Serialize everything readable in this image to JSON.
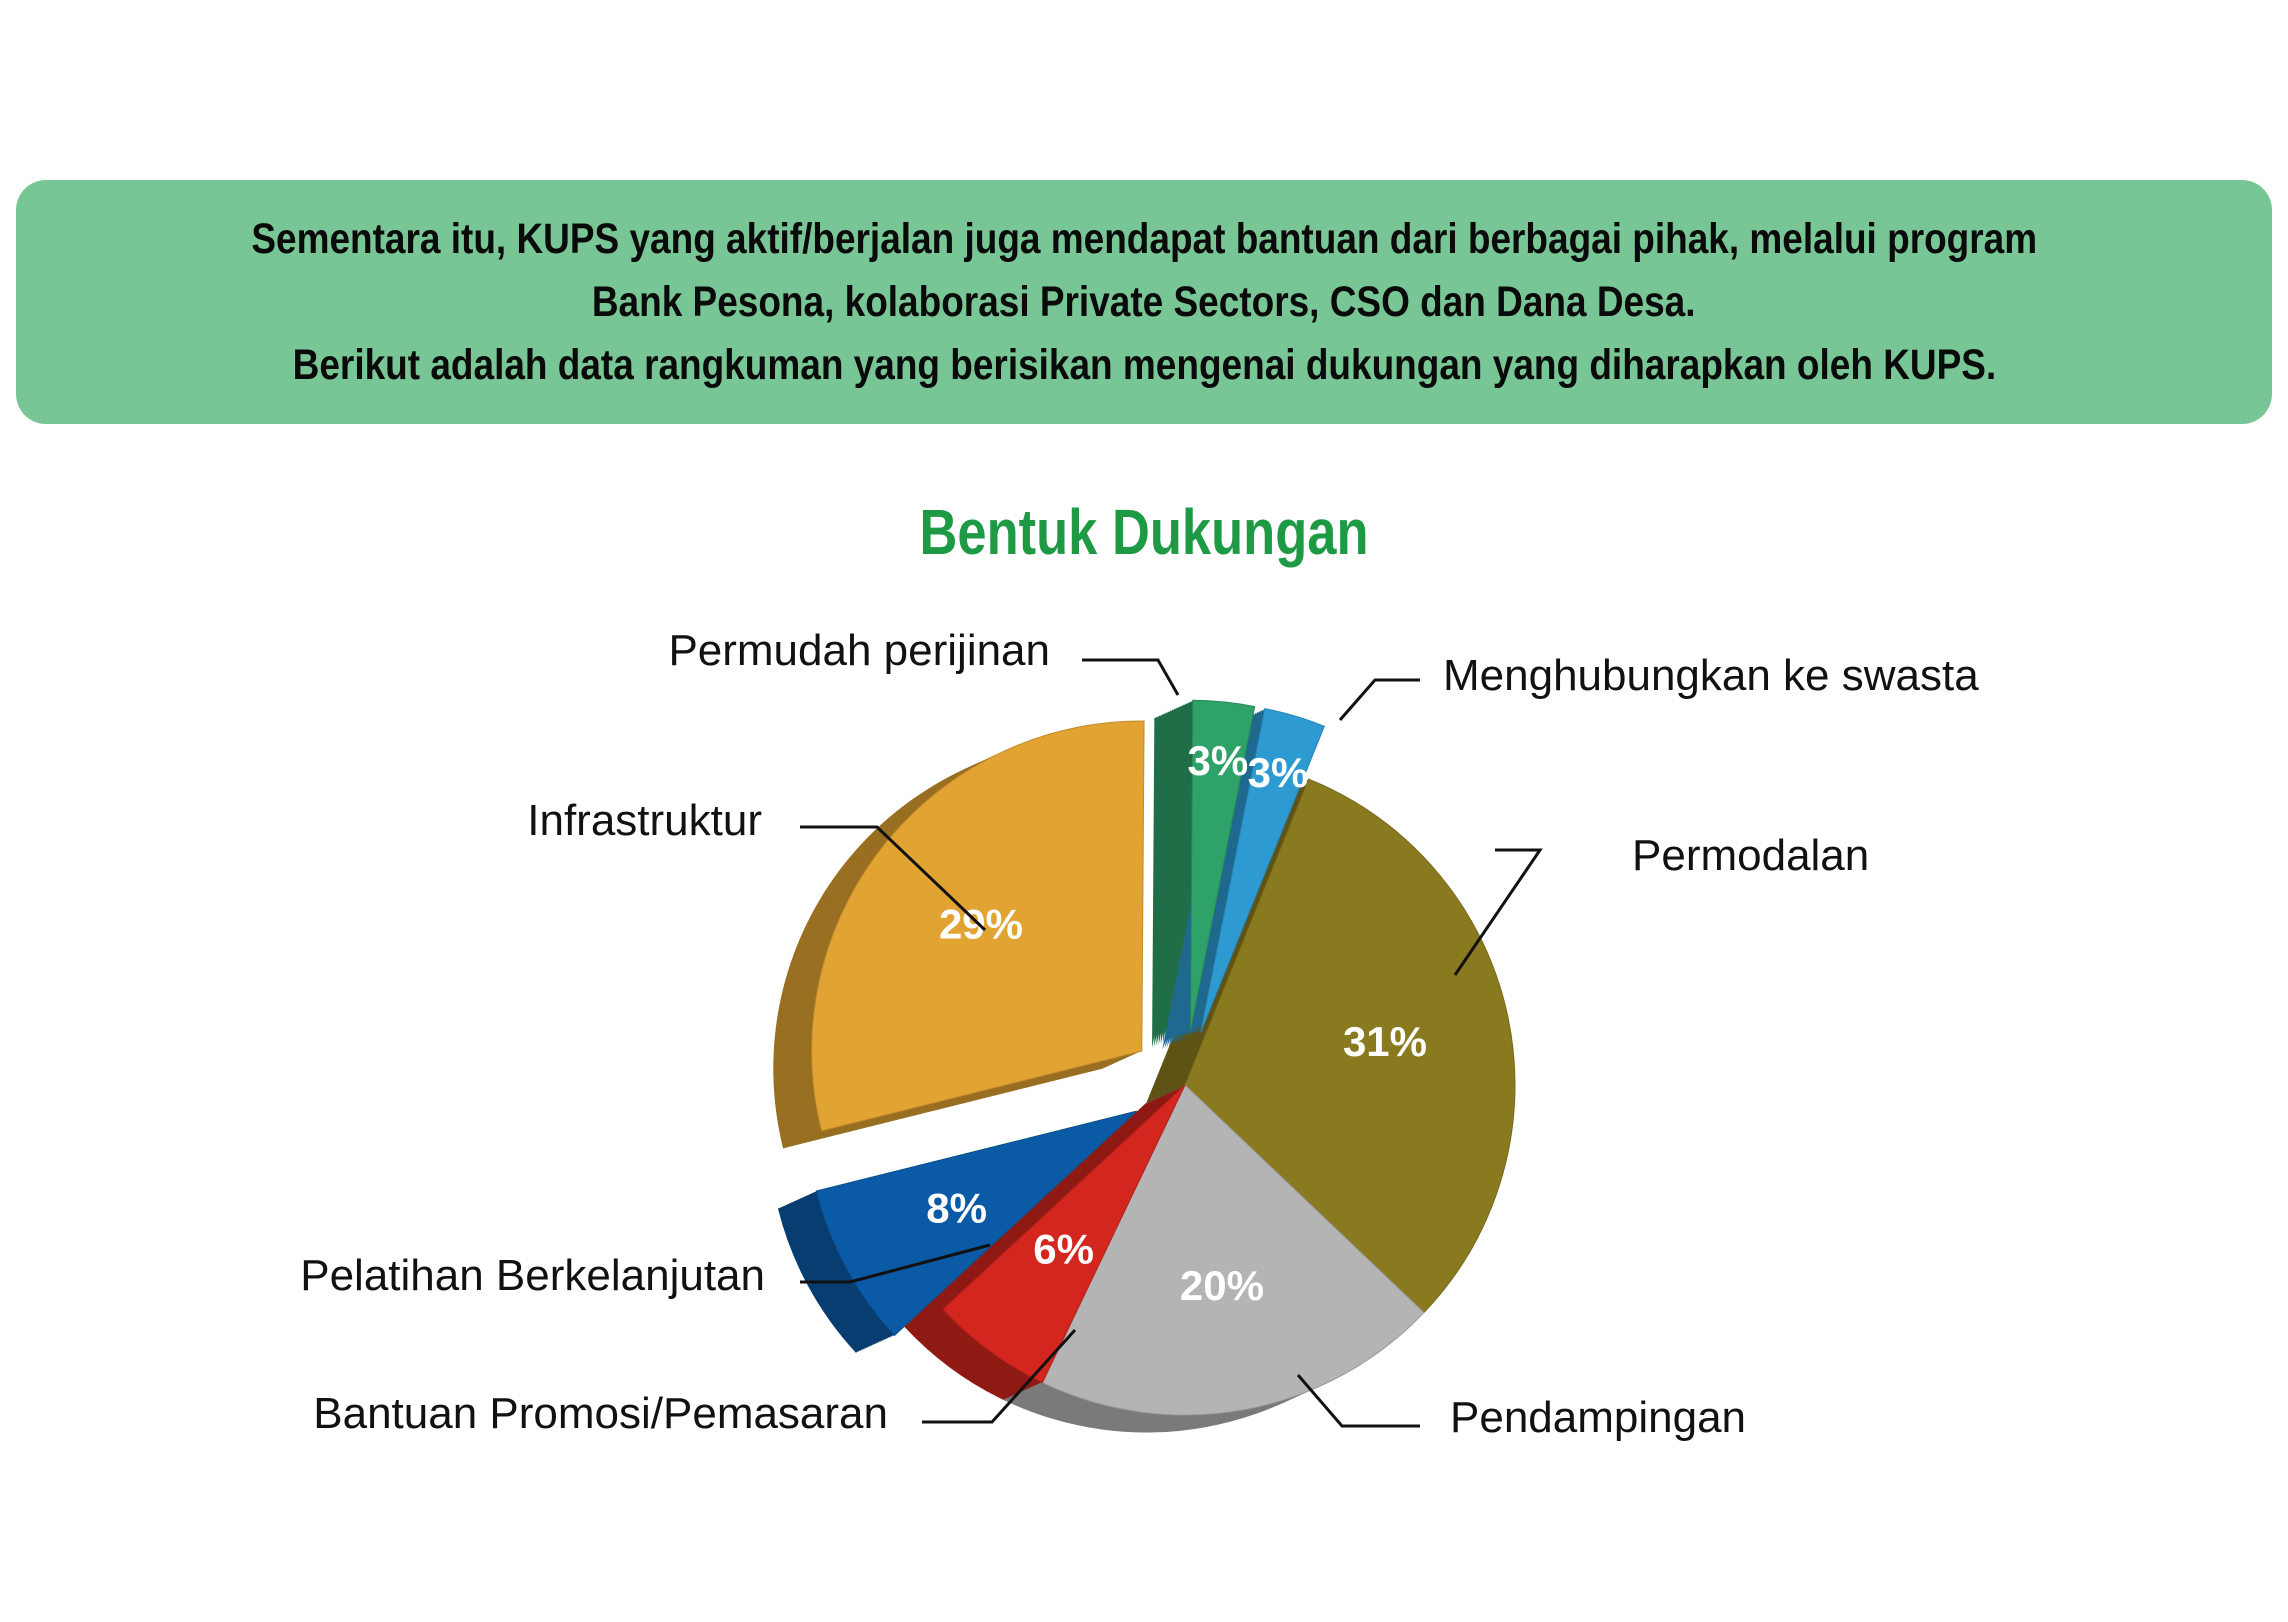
{
  "intro": {
    "lines": [
      "Sementara itu, KUPS yang aktif/berjalan juga mendapat bantuan dari berbagai pihak, melalui program",
      "Bank Pesona, kolaborasi Private Sectors, CSO dan Dana Desa.",
      "Berikut adalah data rangkuman yang berisikan mengenai dukungan yang diharapkan oleh KUPS."
    ]
  },
  "chart_data": {
    "type": "pie",
    "title": "Bentuk Dukungan",
    "unit": "%",
    "slices": [
      {
        "label": "Permodalan",
        "value": 31,
        "display": "31%",
        "color": "#8a7a1f",
        "exploded": false
      },
      {
        "label": "Pendampingan",
        "value": 20,
        "display": "20%",
        "color": "#b4b4b4",
        "exploded": false
      },
      {
        "label": "Bantuan Promosi/Pemasaran",
        "value": 6,
        "display": "6%",
        "color": "#d3261e",
        "exploded": false
      },
      {
        "label": "Pelatihan Berkelanjutan",
        "value": 8,
        "display": "8%",
        "color": "#0b5aa5",
        "exploded": true
      },
      {
        "label": "Infrastruktur",
        "value": 29,
        "display": "29%",
        "color": "#e1a332",
        "exploded": true
      },
      {
        "label": "Permudah perijinan",
        "value": 3,
        "display": "3%",
        "color": "#2fa26a",
        "exploded": true
      },
      {
        "label": "Menghubungkan ke swasta",
        "value": 3,
        "display": "3%",
        "color": "#2e9ad2",
        "exploded": true
      }
    ],
    "legend": "callout labels around pie"
  }
}
